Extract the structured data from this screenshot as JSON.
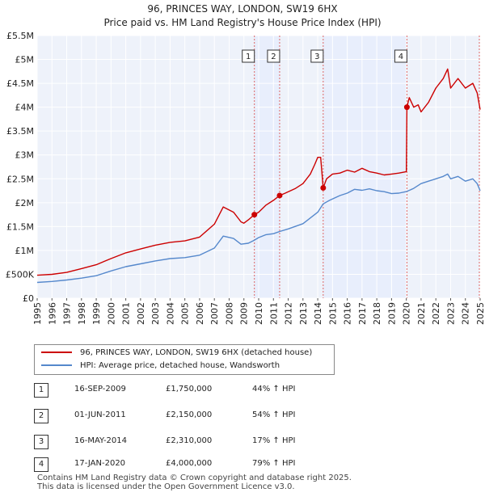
{
  "title": {
    "line1": "96, PRINCES WAY, LONDON, SW19 6HX",
    "line2": "Price paid vs. HM Land Registry's House Price Index (HPI)"
  },
  "chart_data": {
    "type": "line",
    "title": "96, PRINCES WAY, LONDON, SW19 6HX — Price paid vs. HM Land Registry's House Price Index (HPI)",
    "xlabel": "",
    "ylabel": "",
    "xlim": [
      1995,
      2025
    ],
    "ylim": [
      0,
      5500000
    ],
    "grid": true,
    "x_ticks": [
      "1995",
      "1996",
      "1997",
      "1998",
      "1999",
      "2000",
      "2001",
      "2002",
      "2003",
      "2004",
      "2005",
      "2006",
      "2007",
      "2008",
      "2009",
      "2010",
      "2011",
      "2012",
      "2013",
      "2014",
      "2015",
      "2016",
      "2017",
      "2018",
      "2019",
      "2020",
      "2021",
      "2022",
      "2023",
      "2024",
      "2025"
    ],
    "y_ticks": [
      {
        "value": 0,
        "label": "£0"
      },
      {
        "value": 500000,
        "label": "£500K"
      },
      {
        "value": 1000000,
        "label": "£1M"
      },
      {
        "value": 1500000,
        "label": "£1.5M"
      },
      {
        "value": 2000000,
        "label": "£2M"
      },
      {
        "value": 2500000,
        "label": "£2.5M"
      },
      {
        "value": 3000000,
        "label": "£3M"
      },
      {
        "value": 3500000,
        "label": "£3.5M"
      },
      {
        "value": 4000000,
        "label": "£4M"
      },
      {
        "value": 4500000,
        "label": "£4.5M"
      },
      {
        "value": 5000000,
        "label": "£5M"
      },
      {
        "value": 5500000,
        "label": "£5.5M"
      }
    ],
    "series": [
      {
        "name": "96, PRINCES WAY, LONDON, SW19 6HX (detached house)",
        "color": "#cc0000",
        "x": [
          1995.0,
          1996.0,
          1997.0,
          1998.0,
          1999.0,
          2000.0,
          2001.0,
          2002.0,
          2003.0,
          2004.0,
          2005.0,
          2006.0,
          2007.0,
          2007.6,
          2008.3,
          2008.8,
          2009.0,
          2009.3,
          2009.71,
          2010.0,
          2010.5,
          2011.0,
          2011.42,
          2011.8,
          2012.5,
          2013.0,
          2013.5,
          2013.8,
          2014.0,
          2014.2,
          2014.37,
          2014.6,
          2015.0,
          2015.5,
          2016.0,
          2016.5,
          2017.0,
          2017.5,
          2018.0,
          2018.5,
          2019.0,
          2019.5,
          2020.0,
          2020.04,
          2020.2,
          2020.5,
          2020.8,
          2021.0,
          2021.5,
          2022.0,
          2022.5,
          2022.8,
          2023.0,
          2023.5,
          2024.0,
          2024.5,
          2024.8,
          2025.0
        ],
        "y": [
          480000,
          500000,
          540000,
          620000,
          700000,
          830000,
          950000,
          1030000,
          1110000,
          1170000,
          1200000,
          1280000,
          1550000,
          1910000,
          1800000,
          1600000,
          1570000,
          1640000,
          1750000,
          1800000,
          1950000,
          2050000,
          2150000,
          2200000,
          2300000,
          2400000,
          2600000,
          2800000,
          2950000,
          2950000,
          2310000,
          2500000,
          2600000,
          2620000,
          2680000,
          2640000,
          2720000,
          2650000,
          2620000,
          2580000,
          2600000,
          2620000,
          2650000,
          4000000,
          4200000,
          4000000,
          4050000,
          3900000,
          4100000,
          4400000,
          4600000,
          4800000,
          4400000,
          4600000,
          4400000,
          4500000,
          4300000,
          3950000
        ]
      },
      {
        "name": "HPI: Average price, detached house, Wandsworth",
        "color": "#5588cc",
        "x": [
          1995.0,
          1996.0,
          1997.0,
          1998.0,
          1999.0,
          2000.0,
          2001.0,
          2002.0,
          2003.0,
          2004.0,
          2005.0,
          2006.0,
          2007.0,
          2007.6,
          2008.3,
          2008.8,
          2009.3,
          2009.71,
          2010.0,
          2010.5,
          2011.0,
          2011.42,
          2012.0,
          2013.0,
          2014.0,
          2014.37,
          2014.8,
          2015.5,
          2016.0,
          2016.5,
          2017.0,
          2017.5,
          2018.0,
          2018.5,
          2019.0,
          2019.5,
          2020.04,
          2020.5,
          2021.0,
          2021.5,
          2022.0,
          2022.5,
          2022.8,
          2023.0,
          2023.5,
          2024.0,
          2024.5,
          2024.8,
          2025.0
        ],
        "y": [
          330000,
          350000,
          380000,
          420000,
          470000,
          570000,
          660000,
          720000,
          780000,
          830000,
          850000,
          900000,
          1050000,
          1300000,
          1250000,
          1130000,
          1150000,
          1215000,
          1270000,
          1330000,
          1350000,
          1396000,
          1450000,
          1560000,
          1800000,
          1975000,
          2050000,
          2150000,
          2200000,
          2280000,
          2260000,
          2290000,
          2250000,
          2230000,
          2190000,
          2200000,
          2235000,
          2300000,
          2400000,
          2450000,
          2500000,
          2550000,
          2600000,
          2500000,
          2550000,
          2450000,
          2500000,
          2400000,
          2250000
        ]
      }
    ],
    "transactions": [
      {
        "label": "1",
        "x": 2009.71,
        "price": 1750000,
        "date": "16-SEP-2009",
        "price_text": "£1,750,000",
        "hpi_text": "44% ↑ HPI"
      },
      {
        "label": "2",
        "x": 2011.42,
        "price": 2150000,
        "date": "01-JUN-2011",
        "price_text": "£2,150,000",
        "hpi_text": "54% ↑ HPI"
      },
      {
        "label": "3",
        "x": 2014.37,
        "price": 2310000,
        "date": "16-MAY-2014",
        "price_text": "£2,310,000",
        "hpi_text": "17% ↑ HPI"
      },
      {
        "label": "4",
        "x": 2020.04,
        "price": 4000000,
        "date": "17-JAN-2020",
        "price_text": "£4,000,000",
        "hpi_text": "79% ↑ HPI"
      }
    ]
  },
  "legend": {
    "property": "96, PRINCES WAY, LONDON, SW19 6HX (detached house)",
    "hpi": "HPI: Average price, detached house, Wandsworth"
  },
  "colors": {
    "property": "#cc0000",
    "hpi": "#5588cc",
    "band": "#e8eefc",
    "plot_bg": "#eef2fa"
  },
  "footer": {
    "line1": "Contains HM Land Registry data © Crown copyright and database right 2025.",
    "line2": "This data is licensed under the Open Government Licence v3.0."
  }
}
